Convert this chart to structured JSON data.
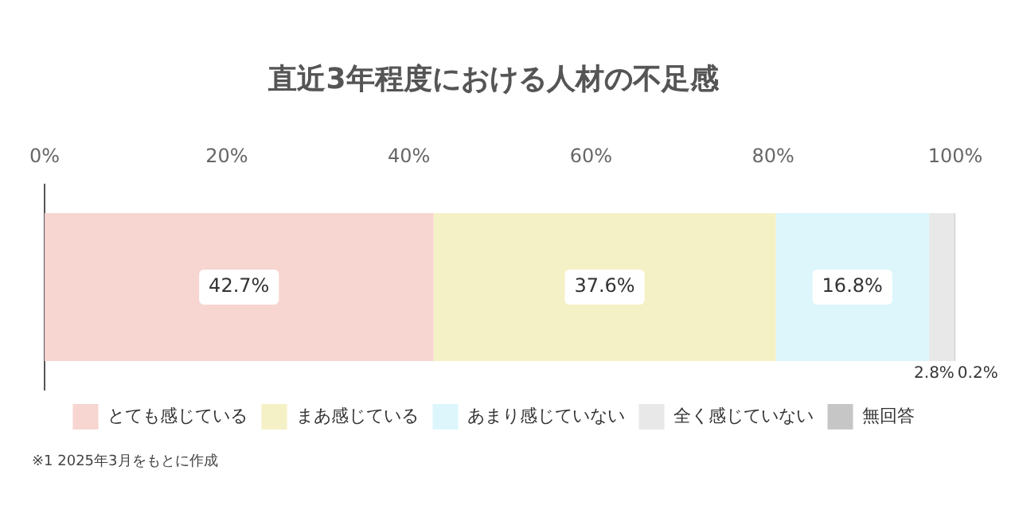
{
  "chart_data": {
    "type": "bar",
    "orientation": "horizontal",
    "stacked": true,
    "title": "直近3年程度における人材の不足感",
    "categories": [
      null
    ],
    "series": [
      {
        "name": "とても感じている",
        "color": "#f7d5d0",
        "values": [
          42.7
        ],
        "value_labels": [
          "42.7%"
        ]
      },
      {
        "name": "まあ感じている",
        "color": "#f5f1c6",
        "values": [
          37.6
        ],
        "value_labels": [
          "37.6%"
        ]
      },
      {
        "name": "あまり感じていない",
        "color": "#dcf6fc",
        "values": [
          16.8
        ],
        "value_labels": [
          "16.8%"
        ]
      },
      {
        "name": "全く感じていない",
        "color": "#e8e8e8",
        "values": [
          2.8
        ],
        "value_labels": [
          "2.8%"
        ]
      },
      {
        "name": "無回答",
        "color": "#c6c6c6",
        "values": [
          0.2
        ],
        "value_labels": [
          "0.2%"
        ]
      }
    ],
    "xlim": [
      0,
      100
    ],
    "xticks": [
      {
        "value": 0,
        "label": "0%"
      },
      {
        "value": 20,
        "label": "20%"
      },
      {
        "value": 40,
        "label": "40%"
      },
      {
        "value": 60,
        "label": "60%"
      },
      {
        "value": 80,
        "label": "80%"
      },
      {
        "value": 100,
        "label": "100%"
      }
    ],
    "grid": false,
    "legend": "bottom",
    "annotations": [
      "※1 2025年3月をもとに作成"
    ]
  }
}
